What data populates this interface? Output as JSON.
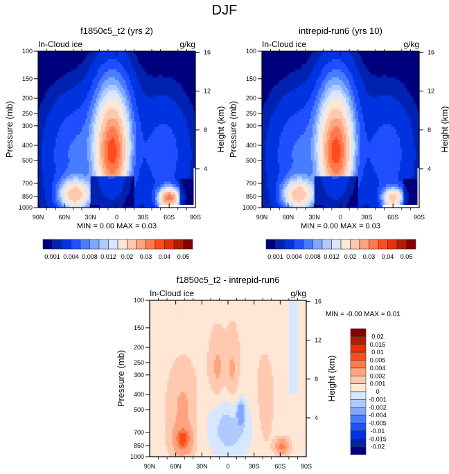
{
  "page_title": "DJF",
  "palette": [
    "#00007f",
    "#0022b0",
    "#0033e0",
    "#1f4fff",
    "#4a7cff",
    "#80a8ff",
    "#b0caff",
    "#d6e7ff",
    "#ffe6d5",
    "#ffc9b0",
    "#ffa47f",
    "#ff7a4d",
    "#ff4c1f",
    "#e83008",
    "#b21c00",
    "#830000"
  ],
  "chart_data": [
    {
      "type": "heatmap",
      "panel": "top-left",
      "title": "f1850c5_t2 (yrs 2)",
      "left_label": "In-Cloud ice",
      "right_label": "g/kg",
      "ylabel": "Pressure (mb)",
      "ylabel_right": "Height (km)",
      "xlabel": "",
      "x_ticks": [
        "90N",
        "60N",
        "30N",
        "0",
        "30S",
        "60S",
        "90S"
      ],
      "y_ticks": [
        "100",
        "150",
        "200",
        "250",
        "300",
        "400",
        "500",
        "700",
        "850",
        "1000"
      ],
      "y_ticks_right": [
        "16",
        "12",
        "8",
        "4"
      ],
      "xlim": [
        90,
        -90
      ],
      "ylim": [
        1000,
        100
      ],
      "stats": "MIN =   0.00  MAX =   0.03",
      "legend": "bottom",
      "levels": [
        0.001,
        0.002,
        0.004,
        0.006,
        0.008,
        0.01,
        0.012,
        0.015,
        0.02,
        0.025,
        0.03,
        0.035,
        0.04,
        0.045,
        0.05
      ],
      "colorbar_labels": [
        "0.001",
        "0.004",
        "0.008",
        "0.012",
        "0.02",
        "0.03",
        "0.04",
        "0.05"
      ],
      "features": [
        {
          "lat": 5,
          "p": 500,
          "peak": 0.03,
          "desc": "tropical upper maximum"
        },
        {
          "lat": 50,
          "p": 850,
          "peak": 0.02,
          "desc": "NH midlatitude low-level"
        },
        {
          "lat": -60,
          "p": 870,
          "peak": 0.03,
          "desc": "SH midlatitude low-level"
        }
      ]
    },
    {
      "type": "heatmap",
      "panel": "top-right",
      "title": "intrepid-run6 (yrs 10)",
      "left_label": "In-Cloud ice",
      "right_label": "g/kg",
      "ylabel": "Pressure (mb)",
      "ylabel_right": "Height (km)",
      "xlabel": "",
      "x_ticks": [
        "90N",
        "60N",
        "30N",
        "0",
        "30S",
        "60S",
        "90S"
      ],
      "y_ticks": [
        "100",
        "150",
        "200",
        "250",
        "300",
        "400",
        "500",
        "700",
        "850",
        "1000"
      ],
      "y_ticks_right": [
        "16",
        "12",
        "8",
        "4"
      ],
      "xlim": [
        90,
        -90
      ],
      "ylim": [
        1000,
        100
      ],
      "stats": "MIN =   0.00  MAX =   0.03",
      "legend": "bottom",
      "levels": [
        0.001,
        0.002,
        0.004,
        0.006,
        0.008,
        0.01,
        0.012,
        0.015,
        0.02,
        0.025,
        0.03,
        0.035,
        0.04,
        0.045,
        0.05
      ],
      "colorbar_labels": [
        "0.001",
        "0.004",
        "0.008",
        "0.012",
        "0.02",
        "0.03",
        "0.04",
        "0.05"
      ],
      "features": [
        {
          "lat": 5,
          "p": 500,
          "peak": 0.03,
          "desc": "tropical upper maximum"
        },
        {
          "lat": 50,
          "p": 850,
          "peak": 0.02,
          "desc": "NH midlatitude low-level"
        },
        {
          "lat": -60,
          "p": 870,
          "peak": 0.02,
          "desc": "SH midlatitude low-level"
        }
      ]
    },
    {
      "type": "heatmap",
      "panel": "bottom",
      "title": "f1850c5_t2 - intrepid-run6",
      "left_label": "In-Cloud ice",
      "right_label": "g/kg",
      "ylabel": "Pressure (mb)",
      "ylabel_right": "Height (km)",
      "xlabel": "",
      "x_ticks": [
        "90N",
        "60N",
        "30N",
        "0",
        "30S",
        "60S",
        "90S"
      ],
      "y_ticks": [
        "100",
        "150",
        "200",
        "250",
        "300",
        "400",
        "500",
        "700",
        "850",
        "1000"
      ],
      "y_ticks_right": [
        "16",
        "12",
        "8",
        "4"
      ],
      "xlim": [
        90,
        -90
      ],
      "ylim": [
        1000,
        100
      ],
      "stats": "MIN =  -0.00  MAX =   0.01",
      "legend": "right",
      "levels": [
        -0.02,
        -0.015,
        -0.01,
        -0.005,
        -0.004,
        -0.002,
        -0.001,
        0,
        0.001,
        0.002,
        0.004,
        0.005,
        0.01,
        0.015,
        0.02
      ],
      "colorbar_labels": [
        "0.02",
        "0.015",
        "0.01",
        "0.005",
        "0.004",
        "0.002",
        "0.001",
        "0",
        "-0.001",
        "-0.002",
        "-0.004",
        "-0.005",
        "-0.01",
        "-0.015",
        "-0.02"
      ],
      "features": [
        {
          "lat": 52,
          "p": 780,
          "peak": 0.005,
          "desc": "NH midlatitude positive difference"
        },
        {
          "lat": -62,
          "p": 850,
          "peak": 0.005,
          "desc": "SH midlatitude positive difference"
        },
        {
          "lat": -15,
          "p": 520,
          "peak": -0.004,
          "desc": "tropical negative difference"
        }
      ]
    }
  ]
}
